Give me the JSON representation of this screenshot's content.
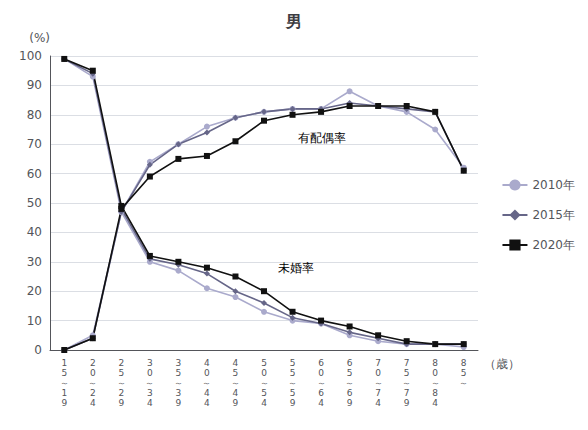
{
  "chart_data": {
    "type": "line",
    "title": "男",
    "y_label": "(%)",
    "x_label": "（歳）",
    "categories": [
      "1\n5\n～\n1\n9",
      "2\n0\n～\n2\n4",
      "2\n5\n～\n2\n9",
      "3\n0\n～\n3\n4",
      "3\n5\n～\n3\n9",
      "4\n0\n～\n4\n4",
      "4\n5\n～\n4\n9",
      "5\n0\n～\n5\n4",
      "5\n5\n～\n5\n9",
      "6\n0\n～\n6\n4",
      "6\n5\n～\n6\n9",
      "7\n0\n～\n7\n4",
      "7\n5\n～\n7\n9",
      "8\n0\n～\n8\n4",
      "8\n5\n～"
    ],
    "series": [
      {
        "name": "2010年",
        "color": "#aaaacc",
        "marker": "circle",
        "values": [
          99,
          93,
          47,
          30,
          27,
          21,
          18,
          13,
          10,
          9,
          5,
          3,
          2,
          2,
          1
        ]
      },
      {
        "name": "2015年",
        "color": "#666688",
        "marker": "diamond",
        "values": [
          99,
          94,
          48,
          31,
          29,
          26,
          20,
          16,
          11,
          9,
          6,
          4,
          2,
          2,
          2
        ]
      },
      {
        "name": "2020年",
        "color": "#111111",
        "marker": "square",
        "values": [
          99,
          95,
          49,
          32,
          30,
          28,
          25,
          20,
          13,
          10,
          8,
          5,
          3,
          2,
          2
        ]
      },
      {
        "name": "2010年",
        "color": "#aaaacc",
        "marker": "circle",
        "values": [
          0,
          5,
          47,
          64,
          70,
          76,
          79,
          81,
          82,
          82,
          88,
          83,
          81,
          75,
          62
        ]
      },
      {
        "name": "2015年",
        "color": "#666688",
        "marker": "diamond",
        "values": [
          0,
          4,
          47,
          63,
          70,
          74,
          79,
          81,
          82,
          82,
          84,
          83,
          82,
          81,
          61
        ]
      },
      {
        "name": "2020年",
        "color": "#111111",
        "marker": "square",
        "values": [
          0,
          4,
          48,
          59,
          65,
          66,
          71,
          78,
          80,
          81,
          83,
          83,
          83,
          81,
          61
        ]
      }
    ],
    "annotations": [
      {
        "text": "有配偶率",
        "x": 8.2,
        "y": 70
      },
      {
        "text": "未婚率",
        "x": 7.5,
        "y": 26
      }
    ],
    "ylim": [
      0,
      100
    ],
    "yticks": [
      0,
      10,
      20,
      30,
      40,
      50,
      60,
      70,
      80,
      90,
      100
    ],
    "grid": true,
    "legend": "right"
  }
}
